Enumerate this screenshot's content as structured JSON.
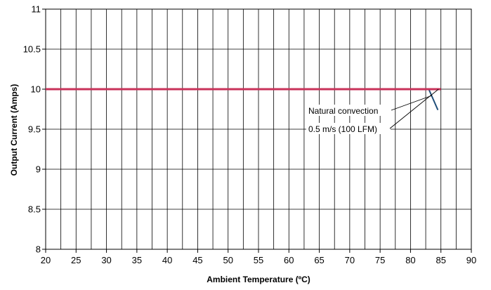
{
  "chart_data": {
    "type": "line",
    "title": "",
    "xlabel": "Ambient Temperature (ºC)",
    "ylabel": "Output Current (Amps)",
    "xlim": [
      20,
      90
    ],
    "ylim": [
      8,
      11
    ],
    "x_major_ticks": [
      20,
      25,
      30,
      35,
      40,
      45,
      50,
      55,
      60,
      65,
      70,
      75,
      80,
      85,
      90
    ],
    "x_tick_labels": [
      "20",
      "25",
      "30",
      "35",
      "40",
      "45",
      "50",
      "55",
      "60",
      "65",
      "70",
      "75",
      "80",
      "85",
      "90"
    ],
    "y_major_ticks": [
      8,
      8.5,
      9,
      9.5,
      10,
      10.5,
      11
    ],
    "y_tick_labels": [
      "8",
      "8.5",
      "9",
      "9.5",
      "10",
      "10.5",
      "11"
    ],
    "x_grid_step": 2.5,
    "y_grid_step": 0.5,
    "grid": true,
    "legend": "none",
    "series": [
      {
        "name": "Natural convection",
        "color": "#1f4e79",
        "x": [
          20,
          83,
          84.5
        ],
        "y": [
          10,
          10,
          9.74
        ]
      },
      {
        "name": "0.5 m/s (100 LFM)",
        "color": "#c8325a",
        "x": [
          20,
          85
        ],
        "y": [
          10,
          10
        ]
      }
    ],
    "annotations": [
      {
        "text": "Natural convection",
        "series": 0
      },
      {
        "text": "0.5 m/s (100 LFM)",
        "series": 1
      }
    ]
  }
}
